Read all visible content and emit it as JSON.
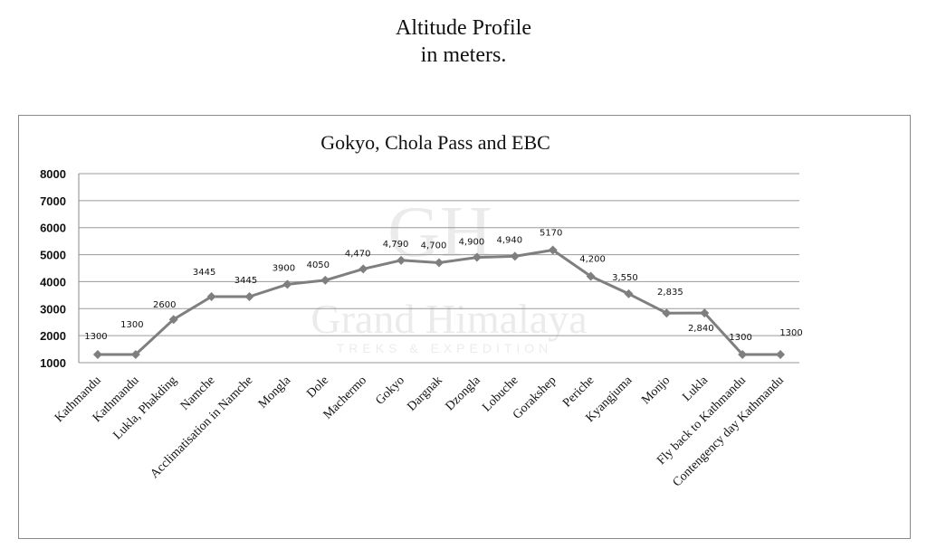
{
  "page": {
    "title_line1": "Altitude Profile",
    "title_line2": "in meters."
  },
  "chart_data": {
    "type": "line",
    "title": "Gokyo, Chola Pass and EBC",
    "ylim": [
      1000,
      8000
    ],
    "yticks": [
      1000,
      2000,
      3000,
      4000,
      5000,
      6000,
      7000,
      8000
    ],
    "grid": true,
    "legend": "none",
    "watermark": {
      "logo": "GH",
      "name": "Grand Himalaya",
      "tagline": "TREKS & EXPEDITION"
    },
    "categories": [
      "Kathmandu",
      "Kathmandu",
      "Lukla, Phakding",
      "Namche",
      "Acclimatisation in Namche",
      "Mongla",
      "Dole",
      "Machermo",
      "Gokyo",
      "Dargnak",
      "Dzongla",
      "Lobuche",
      "Gorakshep",
      "Periche",
      "Kyangjuma",
      "Monjo",
      "Lukla",
      "Fly back to Kathmandu",
      "Contengency day Kathmandu"
    ],
    "series": [
      {
        "color": "#7f7f7f",
        "values": [
          1300,
          1300,
          2600,
          3445,
          3445,
          3900,
          4050,
          4470,
          4790,
          4700,
          4900,
          4940,
          5170,
          4200,
          3550,
          2835,
          2840,
          1300,
          1300
        ],
        "data_labels": [
          "1300",
          "1300",
          "2600",
          "3445",
          "3445",
          "3900",
          "4050",
          "4,470",
          "4,790",
          "4,700",
          "4,900",
          "4,940",
          "5170",
          "4,200",
          "3,550",
          "2,835",
          "2,840",
          "1300",
          "1300"
        ]
      }
    ]
  }
}
